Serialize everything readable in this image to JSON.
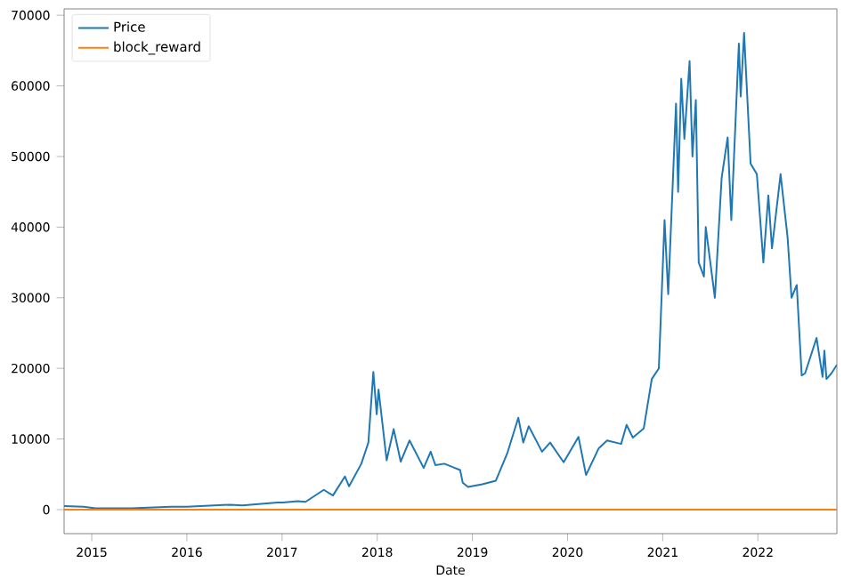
{
  "chart_data": {
    "type": "line",
    "xlabel": "Date",
    "xlim": [
      "2014-09-17",
      "2022-10-31"
    ],
    "ylim": [
      -3400,
      70900
    ],
    "xticks": [
      "2015",
      "2016",
      "2017",
      "2018",
      "2019",
      "2020",
      "2021",
      "2022"
    ],
    "yticks": [
      0,
      10000,
      20000,
      30000,
      40000,
      50000,
      60000,
      70000
    ],
    "legend": "top left",
    "grid": false,
    "marker": "none",
    "line_style": "solid",
    "series": [
      {
        "name": "Price",
        "color": "#1f77b4",
        "x": [
          "2014-09-17",
          "2014-12-01",
          "2015-01-15",
          "2015-06-01",
          "2015-11-01",
          "2016-01-01",
          "2016-06-15",
          "2016-08-01",
          "2016-12-15",
          "2017-01-05",
          "2017-03-01",
          "2017-04-01",
          "2017-06-10",
          "2017-07-15",
          "2017-08-30",
          "2017-09-15",
          "2017-11-01",
          "2017-11-28",
          "2017-12-17",
          "2017-12-30",
          "2018-01-06",
          "2018-02-06",
          "2018-03-05",
          "2018-04-01",
          "2018-05-05",
          "2018-06-28",
          "2018-07-25",
          "2018-08-12",
          "2018-09-15",
          "2018-11-15",
          "2018-11-25",
          "2018-12-15",
          "2019-02-08",
          "2019-04-01",
          "2019-05-15",
          "2019-06-26",
          "2019-07-15",
          "2019-08-05",
          "2019-09-25",
          "2019-10-26",
          "2019-12-17",
          "2020-02-12",
          "2020-03-12",
          "2020-04-30",
          "2020-06-01",
          "2020-07-25",
          "2020-08-15",
          "2020-09-08",
          "2020-10-20",
          "2020-11-20",
          "2020-12-17",
          "2021-01-08",
          "2021-01-22",
          "2021-02-21",
          "2021-03-01",
          "2021-03-13",
          "2021-03-25",
          "2021-04-14",
          "2021-04-25",
          "2021-05-08",
          "2021-05-19",
          "2021-06-08",
          "2021-06-15",
          "2021-07-20",
          "2021-08-15",
          "2021-09-07",
          "2021-09-21",
          "2021-10-20",
          "2021-10-27",
          "2021-11-09",
          "2021-12-04",
          "2021-12-28",
          "2022-01-22",
          "2022-02-10",
          "2022-02-24",
          "2022-03-29",
          "2022-04-25",
          "2022-05-10",
          "2022-05-30",
          "2022-06-18",
          "2022-07-01",
          "2022-08-14",
          "2022-09-06",
          "2022-09-13",
          "2022-09-21",
          "2022-10-10",
          "2022-10-31"
        ],
        "values": [
          500,
          400,
          200,
          200,
          400,
          400,
          700,
          600,
          1000,
          1000,
          1200,
          1100,
          2800,
          2000,
          4700,
          3300,
          6500,
          9500,
          19500,
          13500,
          17000,
          7000,
          11400,
          6800,
          9800,
          5900,
          8200,
          6300,
          6500,
          5600,
          3800,
          3200,
          3600,
          4100,
          8000,
          13000,
          9500,
          11800,
          8200,
          9500,
          6700,
          10300,
          4900,
          8700,
          9800,
          9300,
          12000,
          10200,
          11500,
          18500,
          20000,
          41000,
          30500,
          57500,
          45000,
          61000,
          52500,
          63500,
          50000,
          58000,
          35000,
          33000,
          40000,
          30000,
          47000,
          52700,
          41000,
          66000,
          58500,
          67500,
          49000,
          47500,
          35000,
          44500,
          37000,
          47500,
          38500,
          30000,
          31800,
          19000,
          19300,
          24300,
          18800,
          22500,
          18500,
          19300,
          20500
        ]
      },
      {
        "name": "block_reward",
        "color": "#ff7f0e",
        "x": [
          "2014-09-17",
          "2022-10-31"
        ],
        "values": [
          0,
          0
        ]
      }
    ]
  }
}
